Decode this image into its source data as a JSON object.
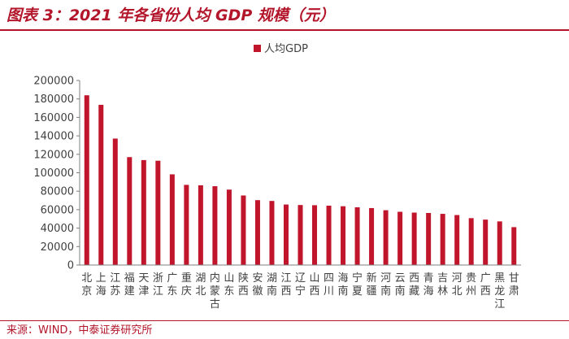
{
  "figure": {
    "title": "图表 3：2021 年各省份人均 GDP 规模（元）",
    "source": "来源：WIND，中泰证券研究所"
  },
  "colors": {
    "accent": "#b3152a",
    "bar": "#c0152b",
    "axis": "#7f7f7f",
    "text": "#404040"
  },
  "chart_data": {
    "type": "bar",
    "title": "",
    "xlabel": "",
    "ylabel": "",
    "ylim": [
      0,
      200000
    ],
    "yticks": [
      "0",
      "20000",
      "40000",
      "60000",
      "80000",
      "100000",
      "120000",
      "140000",
      "160000",
      "180000",
      "200000"
    ],
    "legend": {
      "position": "top-left"
    },
    "categories": [
      "北京",
      "上海",
      "江苏",
      "福建",
      "天津",
      "浙江",
      "广东",
      "重庆",
      "湖北",
      "内蒙古",
      "山东",
      "陕西",
      "安徽",
      "湖南",
      "江西",
      "辽宁",
      "山西",
      "四川",
      "海南",
      "宁夏",
      "新疆",
      "河南",
      "云南",
      "西藏",
      "青海",
      "吉林",
      "河北",
      "贵州",
      "广西",
      "黑龙江",
      "甘肃"
    ],
    "series": [
      {
        "name": "人均GDP",
        "values": [
          183980,
          173630,
          137039,
          116939,
          113732,
          113032,
          98285,
          86879,
          86416,
          85422,
          81727,
          75360,
          70321,
          69440,
          65560,
          65026,
          64821,
          64326,
          63707,
          62549,
          61725,
          59410,
          57686,
          56831,
          56398,
          55450,
          54172,
          50808,
          49206,
          47266,
          41046
        ]
      }
    ]
  }
}
